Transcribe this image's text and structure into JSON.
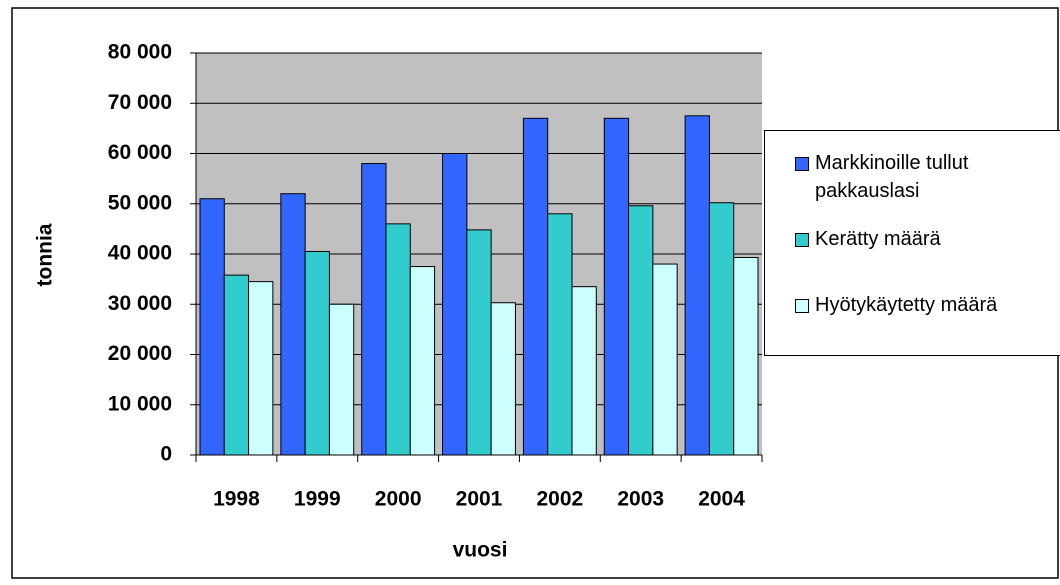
{
  "chart_data": {
    "type": "bar",
    "x_label": "vuosi",
    "y_label": "tonnia",
    "categories": [
      "1998",
      "1999",
      "2000",
      "2001",
      "2002",
      "2003",
      "2004"
    ],
    "series": [
      {
        "name": "Markkinoille tullut pakkauslasi",
        "color": "#3366ff",
        "values": [
          51000,
          52000,
          58000,
          60000,
          67000,
          67000,
          67500
        ]
      },
      {
        "name": "Kerätty määrä",
        "color": "#33cccc",
        "values": [
          35800,
          40500,
          46000,
          44800,
          48000,
          49600,
          50200
        ]
      },
      {
        "name": "Hyötykäytetty määrä",
        "color": "#ccffff",
        "values": [
          34500,
          30000,
          37500,
          30300,
          33500,
          38000,
          39300
        ]
      }
    ],
    "ylim": [
      0,
      80000
    ],
    "yticks": [
      0,
      {
        "value": 10000,
        "label": "10 000"
      },
      {
        "value": 20000,
        "label": "20 000"
      },
      {
        "value": 30000,
        "label": "30 000"
      },
      {
        "value": 40000,
        "label": "40 000"
      },
      {
        "value": 50000,
        "label": "50 000"
      },
      {
        "value": 60000,
        "label": "60 000"
      },
      {
        "value": 70000,
        "label": "70 000"
      },
      {
        "value": 80000,
        "label": "80 000"
      }
    ],
    "grid": true,
    "plot_background": "#c0c0c0",
    "legend": "right"
  }
}
